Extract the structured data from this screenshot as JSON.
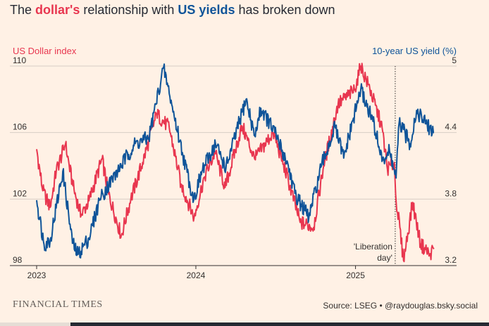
{
  "title": {
    "part1": "The ",
    "highlight1": "dollar's",
    "part2": " relationship with ",
    "highlight2": "US yields",
    "part3": " has broken down"
  },
  "footer": {
    "brand": "FINANCIAL TIMES",
    "source": "Source: LSEG • @raydouglas.bsky.social"
  },
  "colors": {
    "background": "#fff1e5",
    "dollar": "#e8364f",
    "yield": "#0f5499",
    "grid": "#d7cdc5"
  },
  "chart_data": {
    "type": "line",
    "ylabel_left": "US Dollar index",
    "ylabel_right": "10-year US yield (%)",
    "y_left_lim": [
      98,
      110
    ],
    "y_left_ticks": [
      "110",
      "106",
      "102",
      "98"
    ],
    "y_right_lim": [
      3.2,
      5
    ],
    "y_right_ticks": [
      "5",
      "4.4",
      "3.8",
      "3.2"
    ],
    "x_ticks": [
      "2023",
      "2024",
      "2025"
    ],
    "x_range": [
      "2023-01-01",
      "2025-06-30"
    ],
    "grid": true,
    "annotation": {
      "text_lines": [
        "'Liberation",
        "day'"
      ],
      "date": "2025-04-02"
    },
    "series": [
      {
        "name": "US Dollar index",
        "axis": "left",
        "color": "#e8364f",
        "points": [
          [
            "2023-01-01",
            105.0
          ],
          [
            "2023-01-15",
            102.5
          ],
          [
            "2023-02-01",
            101.5
          ],
          [
            "2023-02-15",
            103.7
          ],
          [
            "2023-03-08",
            105.3
          ],
          [
            "2023-03-25",
            102.8
          ],
          [
            "2023-04-13",
            101.0
          ],
          [
            "2023-05-01",
            101.9
          ],
          [
            "2023-05-31",
            104.4
          ],
          [
            "2023-06-15",
            102.3
          ],
          [
            "2023-07-14",
            99.8
          ],
          [
            "2023-08-05",
            102.0
          ],
          [
            "2023-09-01",
            104.2
          ],
          [
            "2023-10-03",
            107.1
          ],
          [
            "2023-11-01",
            106.3
          ],
          [
            "2023-11-28",
            102.9
          ],
          [
            "2023-12-28",
            100.9
          ],
          [
            "2024-01-20",
            103.3
          ],
          [
            "2024-02-14",
            104.8
          ],
          [
            "2024-03-08",
            102.7
          ],
          [
            "2024-04-16",
            106.4
          ],
          [
            "2024-05-15",
            104.4
          ],
          [
            "2024-06-26",
            106.0
          ],
          [
            "2024-07-20",
            104.1
          ],
          [
            "2024-08-27",
            100.6
          ],
          [
            "2024-09-27",
            100.3
          ],
          [
            "2024-10-20",
            104.0
          ],
          [
            "2024-11-22",
            107.7
          ],
          [
            "2024-12-31",
            108.6
          ],
          [
            "2025-01-13",
            110.0
          ],
          [
            "2025-02-03",
            108.6
          ],
          [
            "2025-03-03",
            106.3
          ],
          [
            "2025-03-15",
            103.8
          ],
          [
            "2025-03-31",
            104.2
          ],
          [
            "2025-04-03",
            102.3
          ],
          [
            "2025-04-21",
            98.3
          ],
          [
            "2025-05-12",
            101.8
          ],
          [
            "2025-05-30",
            99.3
          ],
          [
            "2025-06-20",
            98.7
          ],
          [
            "2025-06-30",
            99.0
          ]
        ]
      },
      {
        "name": "10-year US yield (%)",
        "axis": "right",
        "color": "#0f5499",
        "points": [
          [
            "2023-01-01",
            3.79
          ],
          [
            "2023-01-18",
            3.39
          ],
          [
            "2023-02-01",
            3.43
          ],
          [
            "2023-03-02",
            4.05
          ],
          [
            "2023-03-24",
            3.4
          ],
          [
            "2023-04-06",
            3.3
          ],
          [
            "2023-05-01",
            3.45
          ],
          [
            "2023-05-26",
            3.8
          ],
          [
            "2023-07-06",
            4.06
          ],
          [
            "2023-08-15",
            4.3
          ],
          [
            "2023-09-15",
            4.35
          ],
          [
            "2023-10-19",
            4.99
          ],
          [
            "2023-11-01",
            4.75
          ],
          [
            "2023-12-01",
            4.22
          ],
          [
            "2023-12-27",
            3.79
          ],
          [
            "2024-01-15",
            4.05
          ],
          [
            "2024-02-15",
            4.3
          ],
          [
            "2024-03-10",
            4.08
          ],
          [
            "2024-04-25",
            4.7
          ],
          [
            "2024-05-15",
            4.37
          ],
          [
            "2024-05-29",
            4.62
          ],
          [
            "2024-06-30",
            4.4
          ],
          [
            "2024-07-31",
            4.1
          ],
          [
            "2024-08-15",
            3.85
          ],
          [
            "2024-09-16",
            3.63
          ],
          [
            "2024-10-15",
            4.1
          ],
          [
            "2024-11-15",
            4.45
          ],
          [
            "2024-12-05",
            4.17
          ],
          [
            "2025-01-13",
            4.79
          ],
          [
            "2025-02-10",
            4.5
          ],
          [
            "2025-03-04",
            4.15
          ],
          [
            "2025-03-20",
            4.23
          ],
          [
            "2025-04-04",
            3.99
          ],
          [
            "2025-04-11",
            4.49
          ],
          [
            "2025-05-06",
            4.3
          ],
          [
            "2025-05-21",
            4.6
          ],
          [
            "2025-06-10",
            4.48
          ],
          [
            "2025-06-30",
            4.4
          ]
        ]
      }
    ]
  }
}
